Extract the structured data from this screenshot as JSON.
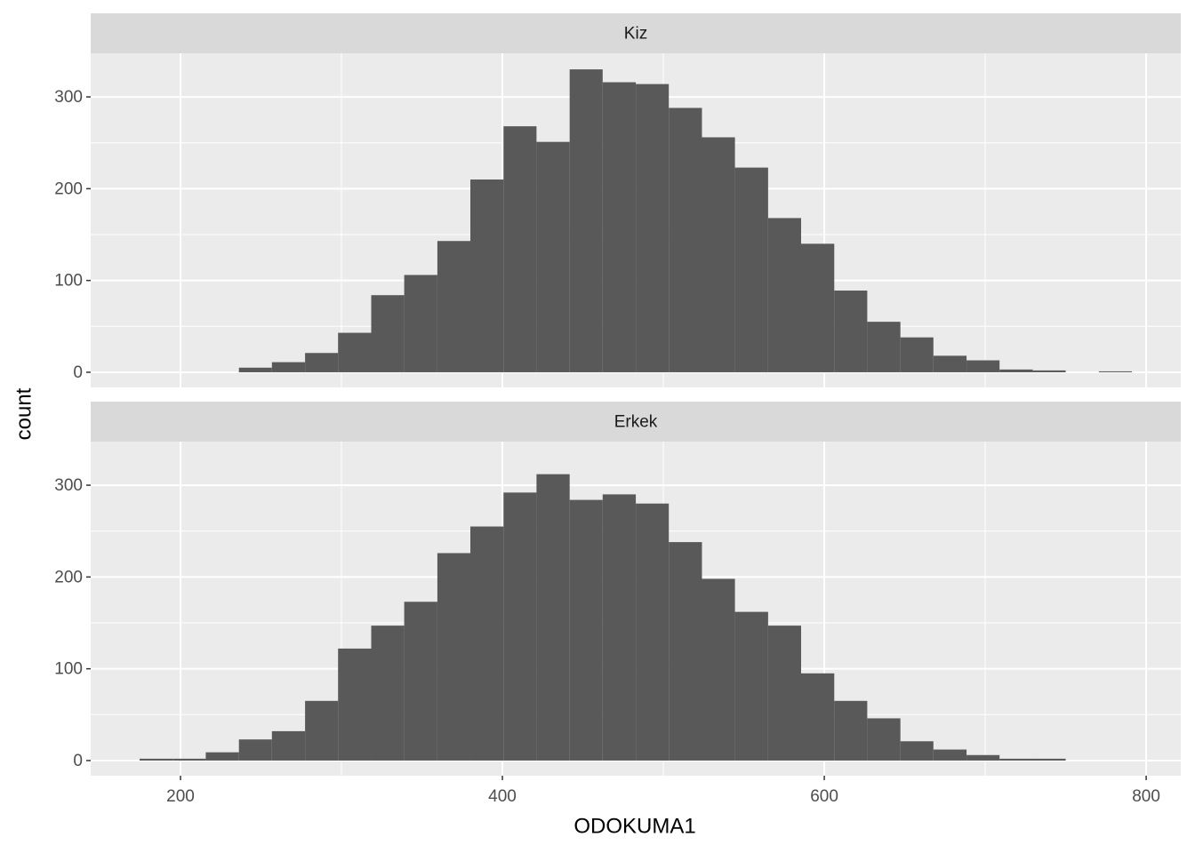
{
  "chart_data": {
    "type": "histogram",
    "x_label": "ODOKUMA1",
    "y_label": "count",
    "color": "#595959",
    "bins": [
      174.6,
      195.2,
      215.7,
      236.3,
      256.8,
      277.4,
      297.9,
      318.5,
      339.0,
      359.6,
      380.1,
      400.7,
      421.2,
      441.8,
      462.3,
      482.9,
      503.4,
      524.0,
      544.5,
      565.1,
      585.6,
      606.2,
      626.7,
      647.3,
      667.8,
      688.4,
      708.9,
      729.5,
      750.0,
      770.6,
      791.1
    ],
    "xlim": [
      144.2,
      821.5
    ],
    "xticks": [
      200,
      400,
      600,
      800
    ],
    "x_minor_grid": [
      300,
      500,
      700
    ],
    "ylim": [
      -16.5,
      347.5
    ],
    "yticks": [
      0,
      100,
      200,
      300
    ],
    "y_minor_grid": [
      50,
      150,
      250
    ],
    "facets": [
      {
        "title": "Kiz",
        "values": [
          0,
          0,
          0,
          5,
          11,
          21,
          43,
          84,
          106,
          143,
          210,
          268,
          251,
          330,
          316,
          314,
          288,
          256,
          223,
          168,
          140,
          89,
          55,
          38,
          18,
          13,
          3,
          2,
          0,
          1
        ]
      },
      {
        "title": "Erkek",
        "values": [
          2,
          2,
          9,
          23,
          32,
          65,
          122,
          147,
          173,
          226,
          255,
          292,
          312,
          284,
          290,
          280,
          238,
          198,
          162,
          147,
          95,
          65,
          46,
          21,
          12,
          6,
          2,
          2,
          0,
          0
        ]
      }
    ]
  }
}
